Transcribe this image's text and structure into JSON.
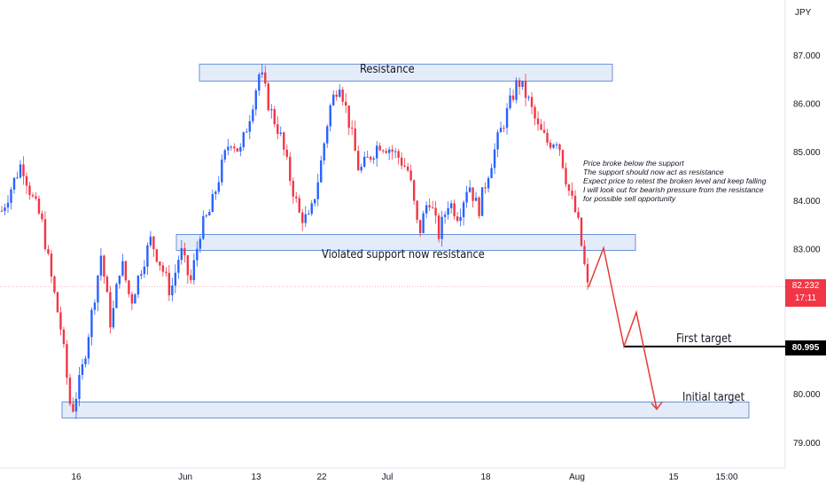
{
  "chart_data": {
    "type": "candlestick",
    "currency": "JPY",
    "y_axis": {
      "ticks": [
        "87.000",
        "86.000",
        "85.000",
        "84.000",
        "83.000",
        "80.000",
        "79.000"
      ],
      "tick_values": [
        87,
        86,
        85,
        84,
        83,
        80,
        79
      ],
      "ylim": [
        78.7,
        87.8
      ]
    },
    "x_axis": {
      "ticks": [
        "16",
        "Jun",
        "13",
        "22",
        "Jul",
        "18",
        "Aug",
        "15",
        "15:00"
      ]
    },
    "last_price": {
      "value": "82.232",
      "countdown": "17:11",
      "color": "#f23645"
    },
    "first_target_level": {
      "value": "80.995",
      "label": "First target"
    },
    "zones": [
      {
        "name": "Resistance",
        "low": 86.48,
        "high": 86.83
      },
      {
        "name": "Violated support now resistance",
        "low": 82.98,
        "high": 83.31
      },
      {
        "name": "Initial target",
        "low": 79.52,
        "high": 79.85
      }
    ],
    "annotation_lines": [
      "Price broke below the support",
      "The support should now act as resistance",
      "Expect price to retest the broken level and keep falling",
      "I will look out for bearish pressure from the resistance",
      "for possible sell opportunity"
    ],
    "projected_path": [
      82.22,
      83.03,
      81.0,
      81.7,
      79.7
    ],
    "price_path_approx": [
      83.8,
      84.3,
      84.8,
      84.1,
      83.6,
      82.4,
      81.3,
      79.6,
      80.4,
      81.6,
      82.9,
      81.4,
      82.8,
      81.9,
      82.6,
      83.2,
      82.7,
      82.1,
      83.0,
      82.3,
      83.4,
      83.8,
      84.6,
      85.3,
      85.0,
      85.8,
      86.7,
      85.9,
      85.4,
      84.5,
      83.7,
      83.6,
      84.6,
      85.9,
      86.5,
      85.6,
      84.6,
      84.9,
      85.2,
      85.1,
      84.9,
      84.6,
      83.3,
      84.1,
      83.3,
      84.0,
      83.7,
      84.4,
      83.8,
      84.6,
      85.3,
      85.9,
      86.5,
      86.1,
      85.5,
      85.2,
      85.3,
      84.3,
      83.6,
      82.22
    ],
    "colors": {
      "bull": "#2962ff",
      "bear": "#f23645",
      "zone_fill": "#dbe6f7",
      "zone_border": "#4a7bd0",
      "arrow": "#e53935"
    }
  }
}
